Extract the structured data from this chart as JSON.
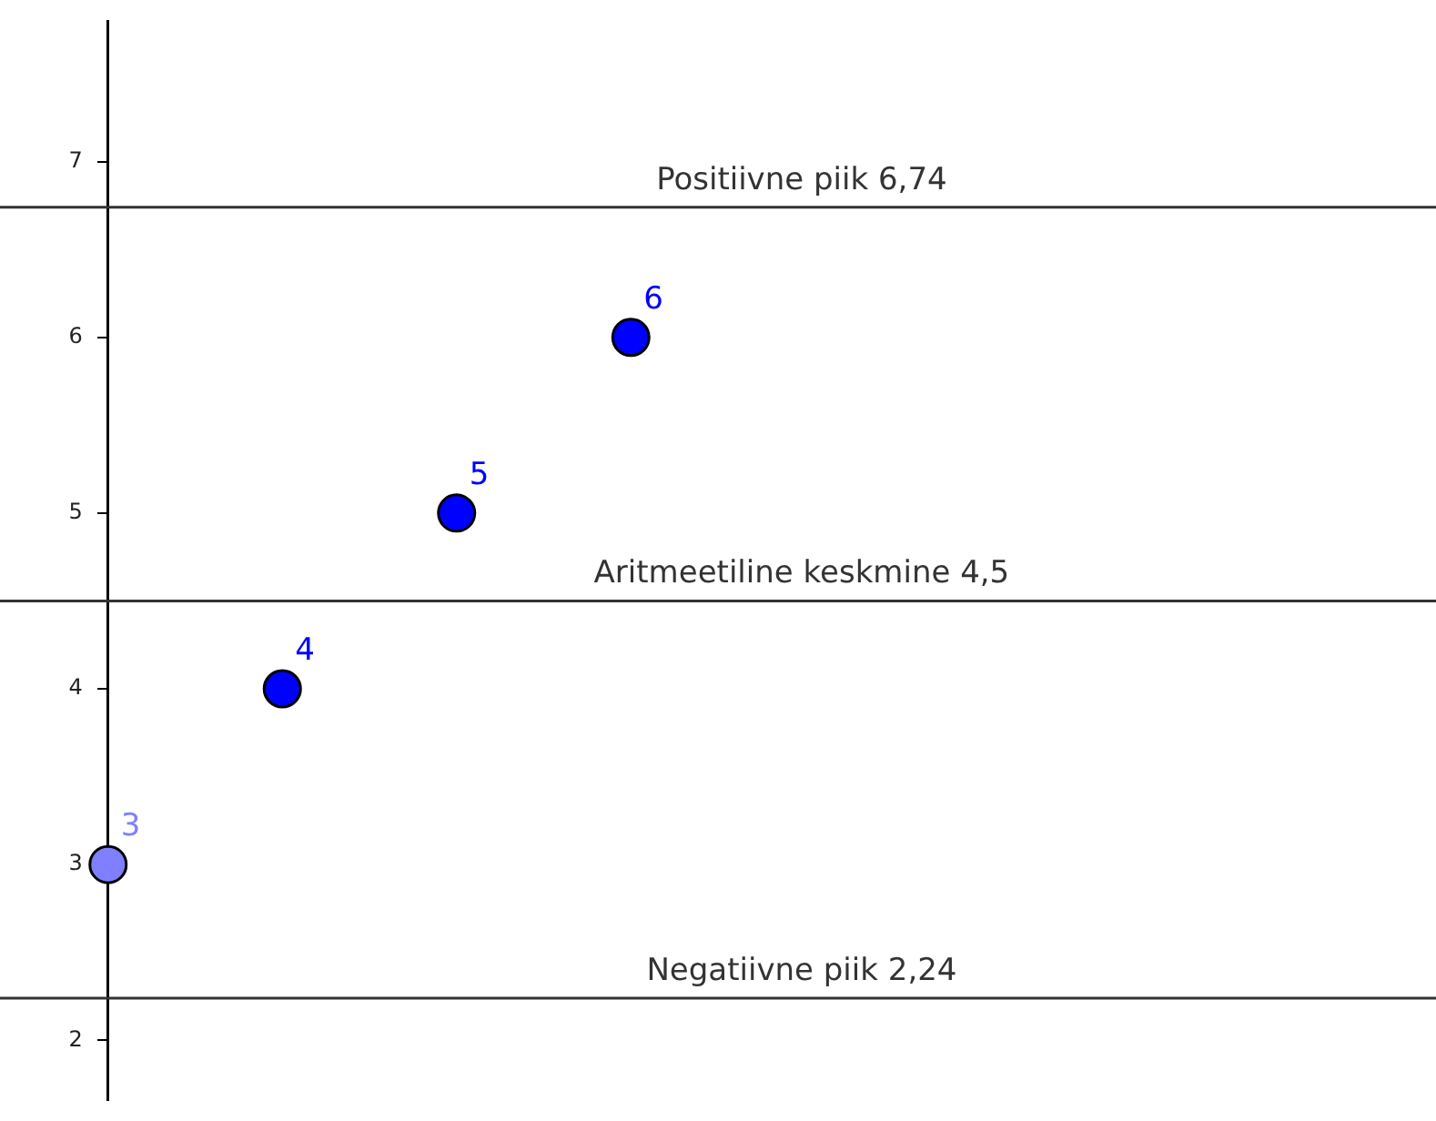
{
  "chart_data": {
    "type": "scatter",
    "categories": [
      null,
      null,
      null,
      null,
      null,
      null,
      null,
      null
    ],
    "values": [
      3,
      4,
      5,
      6,
      null,
      null,
      null,
      null
    ],
    "colors": [
      "#7f7fff",
      "#0000ff",
      "#0000ff",
      "#0000ff",
      null,
      null,
      null,
      null
    ],
    "data_labels": true,
    "ylim": [
      1.66,
      7.8
    ],
    "yticks": [
      2,
      3,
      4,
      5,
      6,
      7
    ],
    "ref_lines": [
      {
        "axis": "y",
        "value": 6.74,
        "label": "Positiivne piik 6,74",
        "color": "#333333"
      },
      {
        "axis": "y",
        "value": 4.5,
        "label": "Aritmeetiline keskmine 4,5",
        "color": "#333333"
      },
      {
        "axis": "y",
        "value": 2.24,
        "label": "Negatiivne piik 2,24",
        "color": "#333333"
      }
    ],
    "tick_labels": "y",
    "grid": false,
    "legend": false,
    "marker": "circle"
  }
}
